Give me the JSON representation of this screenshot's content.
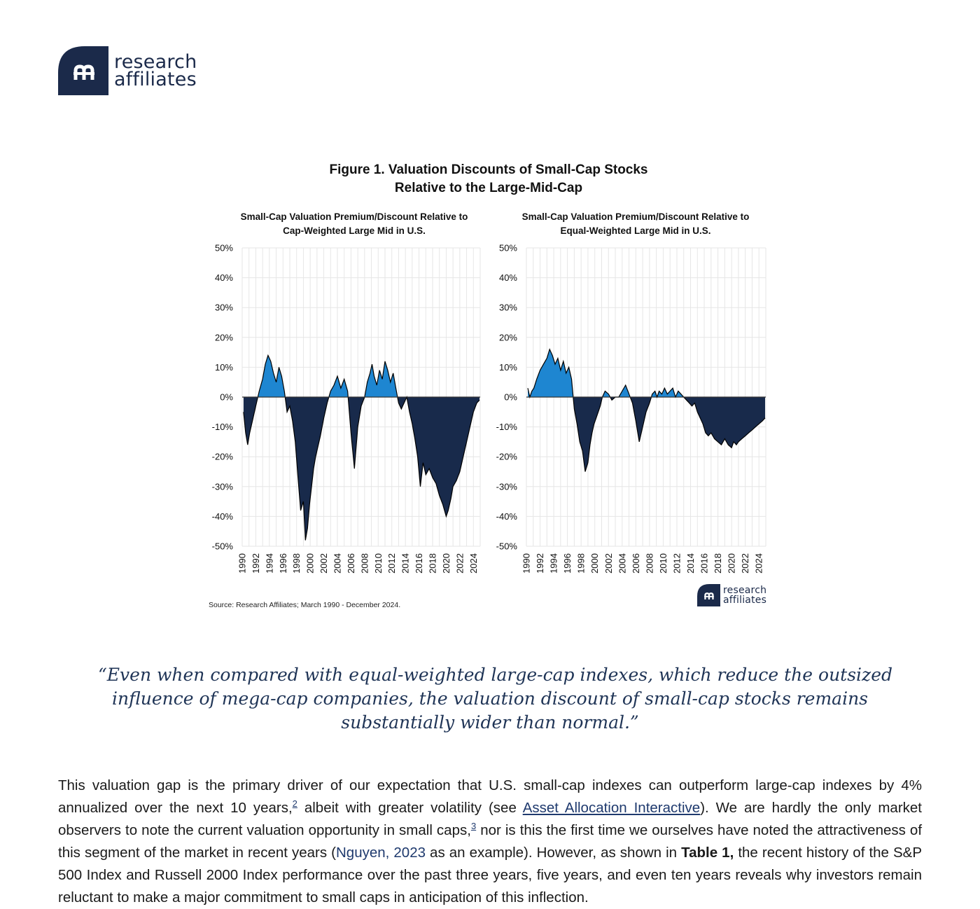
{
  "brand": {
    "logo_line1": "research",
    "logo_line2": "affiliates",
    "logo_icon": "research-affiliates-logo-icon",
    "navy": "#1b2a4a",
    "blue": "#1e86d1"
  },
  "figure": {
    "title_line1": "Figure 1. Valuation Discounts of Small-Cap Stocks",
    "title_line2": "Relative to the Large-Mid-Cap",
    "source": "Source: Research Affiliates; March 1990 - December 2024."
  },
  "chart_data": [
    {
      "type": "area",
      "title_line1": "Small-Cap Valuation Premium/Discount Relative to",
      "title_line2": "Cap-Weighted Large Mid in U.S.",
      "xlabel": "",
      "ylabel": "",
      "ylim": [
        -50,
        50
      ],
      "xlim": [
        1990,
        2025
      ],
      "y_ticks": [
        "50%",
        "40%",
        "30%",
        "20%",
        "10%",
        "0%",
        "-10%",
        "-20%",
        "-30%",
        "-40%",
        "-50%"
      ],
      "x_ticks": [
        "1990",
        "1992",
        "1994",
        "1996",
        "1998",
        "2000",
        "2002",
        "2004",
        "2006",
        "2008",
        "2010",
        "2012",
        "2014",
        "2016",
        "2018",
        "2020",
        "2022",
        "2024"
      ],
      "grid": true,
      "positive_color": "#1e86d1",
      "negative_color": "#182a4b",
      "x": [
        1990.2,
        1990.5,
        1990.8,
        1991.1,
        1991.5,
        1992.0,
        1992.5,
        1993.0,
        1993.4,
        1993.8,
        1994.2,
        1994.6,
        1995.0,
        1995.4,
        1995.8,
        1996.2,
        1996.6,
        1997.0,
        1997.4,
        1997.8,
        1998.2,
        1998.6,
        1999.0,
        1999.3,
        1999.6,
        1999.9,
        2000.2,
        2000.5,
        2000.8,
        2001.1,
        2001.5,
        2002.0,
        2002.5,
        2003.0,
        2003.5,
        2004.0,
        2004.5,
        2005.0,
        2005.5,
        2006.0,
        2006.5,
        2007.0,
        2007.5,
        2008.0,
        2008.4,
        2008.8,
        2009.1,
        2009.4,
        2009.8,
        2010.2,
        2010.6,
        2011.0,
        2011.4,
        2011.8,
        2012.2,
        2012.6,
        2013.0,
        2013.4,
        2013.8,
        2014.2,
        2014.6,
        2015.0,
        2015.4,
        2015.8,
        2016.2,
        2016.6,
        2017.0,
        2017.5,
        2018.0,
        2018.5,
        2019.0,
        2019.5,
        2020.0,
        2020.3,
        2020.7,
        2021.0,
        2021.5,
        2022.0,
        2022.5,
        2023.0,
        2023.5,
        2024.0,
        2024.5,
        2024.9
      ],
      "values": [
        -5,
        -12,
        -16,
        -12,
        -8,
        -3,
        2,
        6,
        11,
        14,
        12,
        8,
        5,
        10,
        7,
        2,
        -5,
        -3,
        -8,
        -15,
        -27,
        -38,
        -35,
        -48,
        -44,
        -36,
        -30,
        -24,
        -20,
        -17,
        -13,
        -7,
        -2,
        2,
        4,
        7,
        3,
        6,
        2,
        -12,
        -24,
        -10,
        -3,
        0,
        5,
        8,
        11,
        7,
        4,
        9,
        6,
        12,
        9,
        5,
        8,
        3,
        -2,
        -4,
        -2,
        0,
        -5,
        -9,
        -14,
        -20,
        -30,
        -22,
        -26,
        -24,
        -27,
        -29,
        -33,
        -36,
        -40,
        -38,
        -34,
        -30,
        -28,
        -25,
        -20,
        -15,
        -10,
        -5,
        -2,
        -1
      ],
      "line_color": "#000000"
    },
    {
      "type": "area",
      "title_line1": "Small-Cap Valuation Premium/Discount Relative to",
      "title_line2": "Equal-Weighted Large Mid in U.S.",
      "xlabel": "",
      "ylabel": "",
      "ylim": [
        -50,
        50
      ],
      "xlim": [
        1990,
        2025
      ],
      "y_ticks": [
        "50%",
        "40%",
        "30%",
        "20%",
        "10%",
        "0%",
        "-10%",
        "-20%",
        "-30%",
        "-40%",
        "-50%"
      ],
      "x_ticks": [
        "1990",
        "1992",
        "1994",
        "1996",
        "1998",
        "2000",
        "2002",
        "2004",
        "2006",
        "2008",
        "2010",
        "2012",
        "2014",
        "2016",
        "2018",
        "2020",
        "2022",
        "2024"
      ],
      "grid": true,
      "positive_color": "#1e86d1",
      "negative_color": "#182a4b",
      "x": [
        1990.2,
        1990.5,
        1990.8,
        1991.1,
        1991.5,
        1992.0,
        1992.5,
        1993.0,
        1993.4,
        1993.8,
        1994.2,
        1994.6,
        1995.0,
        1995.4,
        1995.8,
        1996.2,
        1996.6,
        1997.0,
        1997.4,
        1997.8,
        1998.2,
        1998.6,
        1999.0,
        1999.3,
        1999.6,
        1999.9,
        2000.2,
        2000.5,
        2000.8,
        2001.1,
        2001.5,
        2002.0,
        2002.5,
        2003.0,
        2003.5,
        2004.0,
        2004.5,
        2005.0,
        2005.5,
        2006.0,
        2006.5,
        2007.0,
        2007.5,
        2008.0,
        2008.4,
        2008.8,
        2009.1,
        2009.4,
        2009.8,
        2010.2,
        2010.6,
        2011.0,
        2011.4,
        2011.8,
        2012.2,
        2012.6,
        2013.0,
        2013.4,
        2013.8,
        2014.2,
        2014.6,
        2015.0,
        2015.4,
        2015.8,
        2016.2,
        2016.6,
        2017.0,
        2017.5,
        2018.0,
        2018.5,
        2019.0,
        2019.5,
        2020.0,
        2020.3,
        2020.7,
        2021.0,
        2021.5,
        2022.0,
        2022.5,
        2023.0,
        2023.5,
        2024.0,
        2024.5,
        2024.9
      ],
      "values": [
        3,
        0,
        2,
        3,
        6,
        9,
        11,
        13,
        16,
        14,
        11,
        13,
        9,
        12,
        8,
        10,
        6,
        -4,
        -9,
        -15,
        -18,
        -25,
        -22,
        -16,
        -12,
        -9,
        -7,
        -5,
        -3,
        0,
        2,
        1,
        -1,
        0,
        0,
        2,
        4,
        1,
        -2,
        -8,
        -15,
        -10,
        -5,
        -2,
        1,
        2,
        0,
        2,
        1,
        3,
        1,
        2,
        3,
        0,
        2,
        1,
        0,
        -1,
        -2,
        -3,
        -2,
        -5,
        -7,
        -9,
        -12,
        -13,
        -12,
        -14,
        -15,
        -16,
        -14,
        -16,
        -17,
        -15,
        -16,
        -15,
        -14,
        -13,
        -12,
        -11,
        -10,
        -9,
        -8,
        -7
      ],
      "line_color": "#000000"
    }
  ],
  "quote": {
    "line1": "“Even when compared with equal-weighted large-cap indexes, which reduce the outsized",
    "line2": "influence of mega-cap companies, the valuation discount of small-cap stocks remains",
    "line3": "substantially wider than normal.”"
  },
  "body": {
    "p1_a": "This valuation gap is the primary driver of our expectation that U.S. small-cap indexes can outperform large-cap indexes by 4% annualized over the next 10 years,",
    "fn2": "2",
    "p1_b": " albeit with greater volatility (see ",
    "link_aai": "Asset Allocation Interactive",
    "p1_c": "). We are hardly the only market observers to note the current valuation opportunity in small caps,",
    "fn3": "3",
    "p1_d": " nor is this the first time we ourselves have noted the attractiveness of this segment of the market in recent years (",
    "link_nguyen": "Nguyen, 2023",
    "p1_e": " as an example). However, as shown in ",
    "bold_table": "Table 1,",
    "p1_f": " the recent history of the S&P 500 Index and Russell 2000 Index performance over the past three years, five years, and even ten years reveals why investors remain reluctant to make a major commitment to small caps in anticipation of this inflection."
  }
}
